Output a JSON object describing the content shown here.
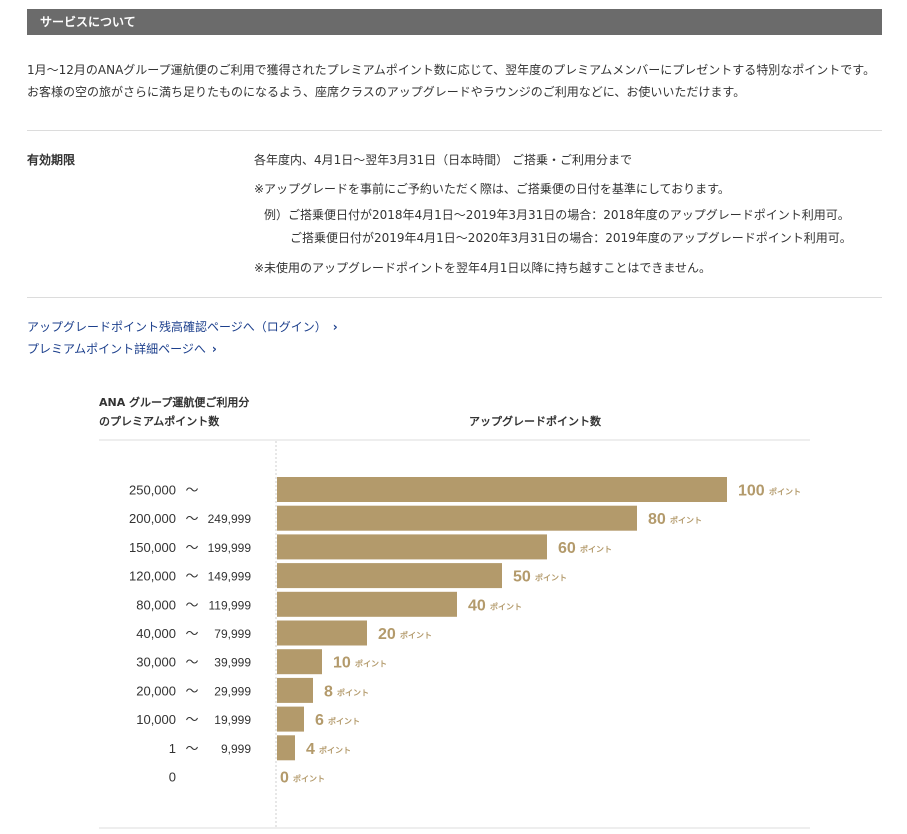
{
  "section": {
    "title": "サービスについて"
  },
  "intro": {
    "text": "1月～12月のANAグループ運航便のご利用で獲得されたプレミアムポイント数に応じて、翌年度のプレミアムメンバーにプレゼントする特別なポイントです。お客様の空の旅がさらに満ち足りたものになるよう、座席クラスのアップグレードやラウンジのご利用などに、お使いいただけます。"
  },
  "validity": {
    "label": "有効期限",
    "line1": "各年度内、4月1日～翌年3月31日（日本時間） ご搭乗・ご利用分まで",
    "line2": "※アップグレードを事前にご予約いただく際は、ご搭乗便の日付を基準にしております。",
    "line3": "例）ご搭乗便日付が2018年4月1日～2019年3月31日の場合：2018年度のアップグレードポイント利用可。",
    "line4": "ご搭乗便日付が2019年4月1日～2020年3月31日の場合：2019年度のアップグレードポイント利用可。",
    "line5": "※未使用のアップグレードポイントを翌年4月1日以降に持ち越すことはできません。"
  },
  "links": [
    {
      "label": "アップグレードポイント残高確認ページへ（ログイン）"
    },
    {
      "label": "プレミアムポイント詳細ページへ"
    }
  ],
  "table": {
    "col1_line1": "ANA グループ運航便ご利用分",
    "col1_line2": "のプレミアムポイント数",
    "col2": "アップグレードポイント数"
  },
  "colors": {
    "bar": "#b39a6b",
    "header_bg": "#6b6b6b",
    "link": "#1c3f8c"
  },
  "chart_data": {
    "type": "bar",
    "orientation": "horizontal",
    "unit": "ポイント",
    "categories_from": [
      "250,000",
      "200,000",
      "150,000",
      "120,000",
      "80,000",
      "40,000",
      "30,000",
      "20,000",
      "10,000",
      "1",
      "0"
    ],
    "categories_to": [
      "",
      "249,999",
      "199,999",
      "149,999",
      "119,999",
      "79,999",
      "39,999",
      "29,999",
      "19,999",
      "9,999",
      ""
    ],
    "values": [
      100,
      80,
      60,
      50,
      40,
      20,
      10,
      8,
      6,
      4,
      0
    ]
  }
}
